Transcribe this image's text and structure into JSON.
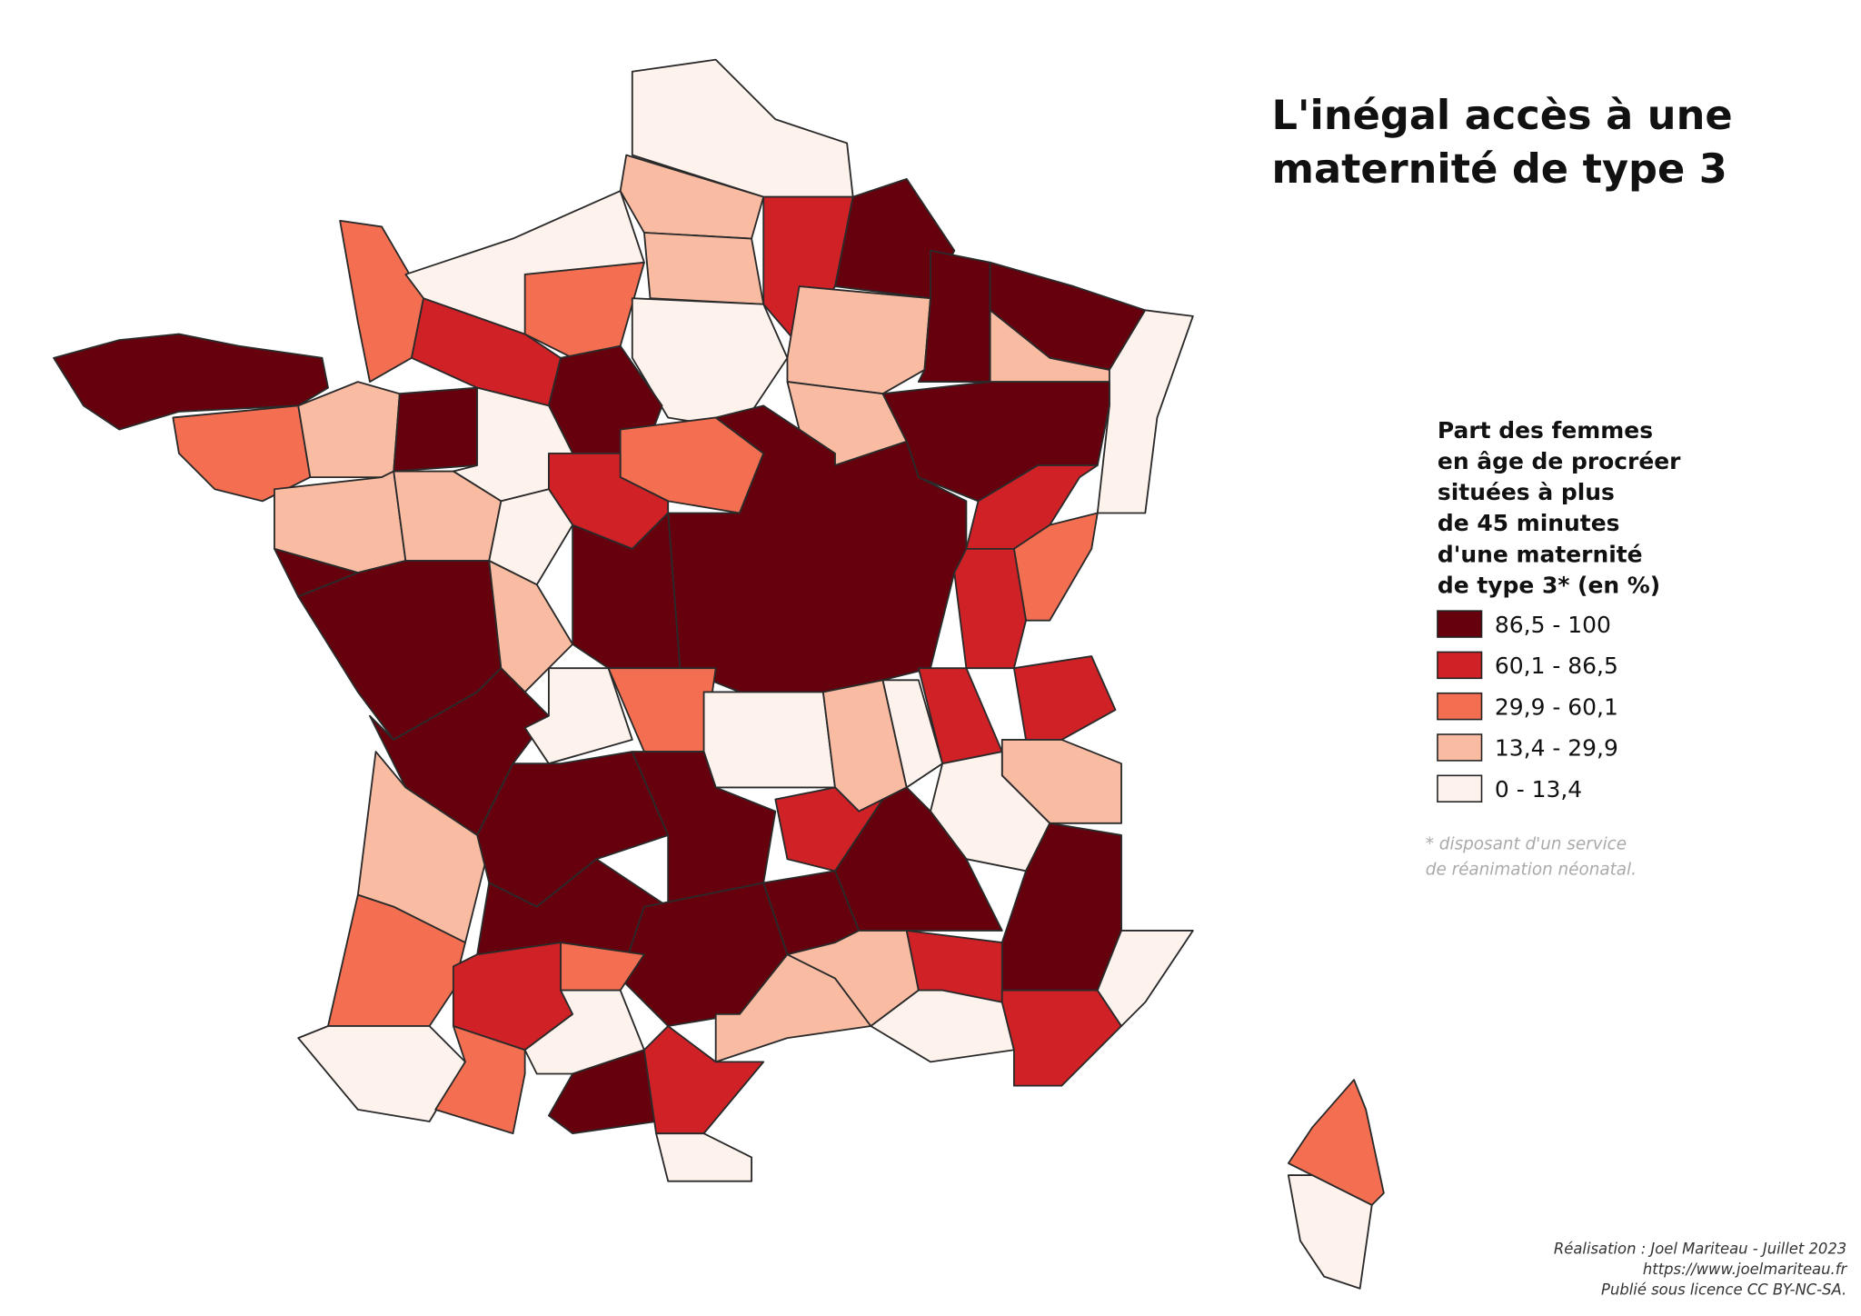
{
  "title": [
    "L'inégal accès à une",
    "maternité de type 3"
  ],
  "legend": {
    "title": [
      "Part des femmes",
      "en âge de procréer",
      "situées à plus",
      "de 45 minutes",
      "d'une maternité",
      "de type 3* (en %)"
    ],
    "items": [
      {
        "label": "86,5 - 100",
        "color": "#67000d"
      },
      {
        "label": "60,1 - 86,5",
        "color": "#cf2126"
      },
      {
        "label": "29,9 - 60,1",
        "color": "#f46f52"
      },
      {
        "label": "13,4 - 29,9",
        "color": "#f9bca3"
      },
      {
        "label": "0 - 13,4",
        "color": "#fef2ec"
      }
    ]
  },
  "footnote": [
    "* disposant d'un service",
    "de réanimation néonatal."
  ],
  "credits": [
    "Réalisation : Joel Mariteau - Juillet 2023",
    "https://www.joelmariteau.fr",
    "Publié sous licence CC BY-NC-SA."
  ]
}
